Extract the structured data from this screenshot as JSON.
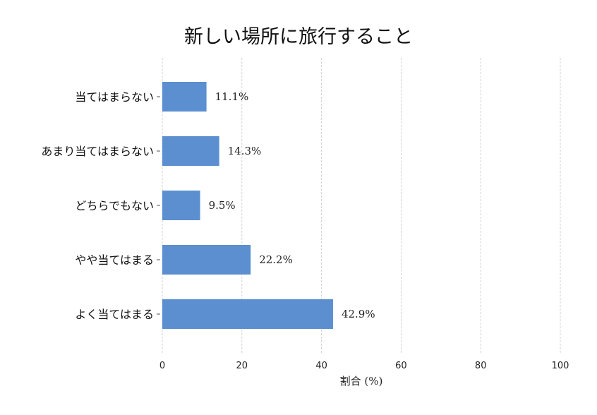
{
  "chart_data": {
    "type": "bar",
    "orientation": "horizontal",
    "title": "新しい場所に旅行すること",
    "xlabel": "割合 (%)",
    "ylabel": "",
    "xlim": [
      0,
      100
    ],
    "x_ticks": [
      "0",
      "20",
      "40",
      "60",
      "80",
      "100"
    ],
    "grid": true,
    "bar_color": "#5b8fd0",
    "categories": [
      "当てはまらない",
      "あまり当てはまらない",
      "どちらでもない",
      "やや当てはまる",
      "よく当てはまる"
    ],
    "values": [
      11.1,
      14.3,
      9.5,
      22.2,
      42.9
    ],
    "data_labels": [
      "11.1%",
      "14.3%",
      "9.5%",
      "22.2%",
      "42.9%"
    ]
  }
}
